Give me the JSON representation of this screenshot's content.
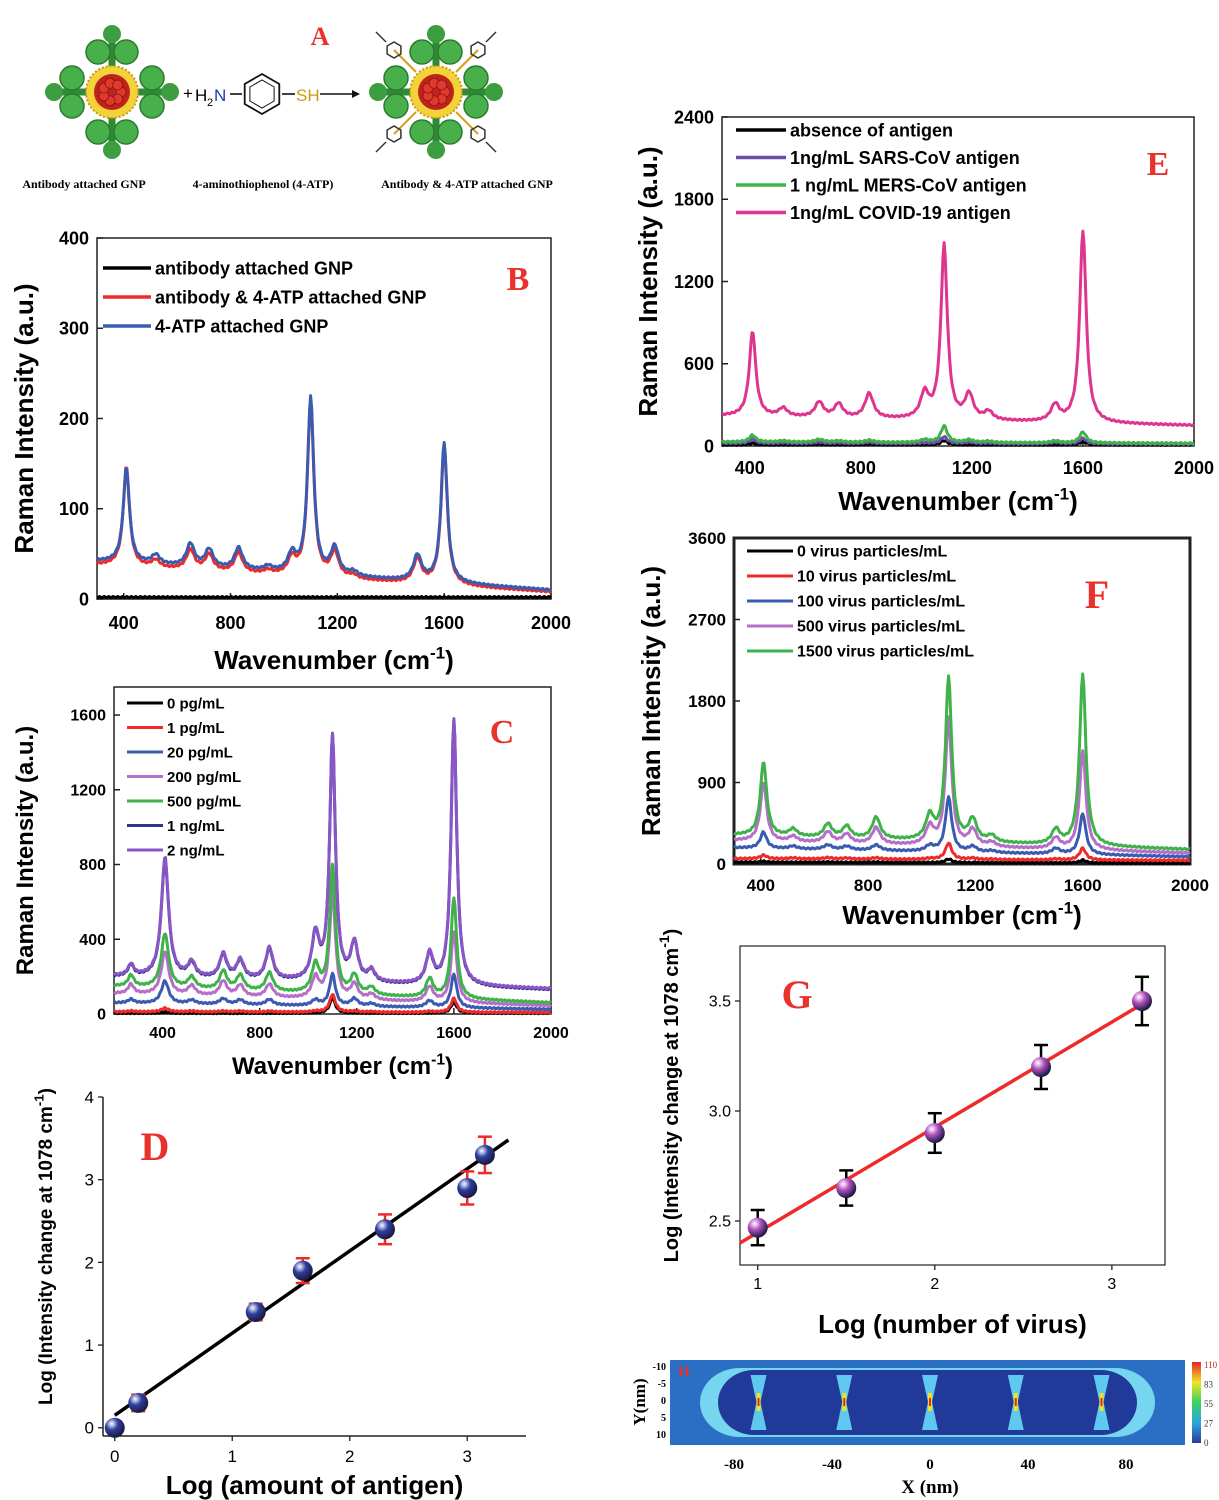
{
  "scheme": {
    "letter": "A",
    "reagent": "4-aminothiophenol (4-ATP)",
    "left_caption": "Antibody attached GNP",
    "right_caption": "Antibody & 4-ATP attached GNP",
    "plus": "+",
    "h2n": "H",
    "two": "2",
    "n": "N",
    "sh": "SH",
    "nh2": "NH2"
  },
  "colors": {
    "panel_letter": "#e8322b",
    "black": "#000000",
    "red": "#ee2b2b",
    "blue": "#3a5bb0",
    "magenta": "#e0358f",
    "green": "#3fb34a",
    "purple": "#6a4fa8",
    "lilac": "#b46fc9",
    "navy": "#2c3590"
  },
  "chart_data": [
    {
      "id": "B",
      "letter": "B",
      "type": "line",
      "xlabel": "Wavenumber (cm",
      "xlabel_sup": "-1",
      "xlabel_end": ")",
      "ylabel": "Raman Intensity (a.u.)",
      "xlim": [
        300,
        2000
      ],
      "ylim": [
        0,
        400
      ],
      "xticks": [
        400,
        800,
        1200,
        1600,
        2000
      ],
      "yticks": [
        0,
        100,
        200,
        300,
        400
      ],
      "legend_position": "top-left",
      "peaks_x": [
        410,
        520,
        650,
        720,
        830,
        940,
        1030,
        1100,
        1190,
        1260,
        1500,
        1600
      ],
      "series": [
        {
          "name": "antibody attached GNP",
          "color": "#000000",
          "baseline_start": 2,
          "baseline_end": 2,
          "peaks": [
            0,
            0,
            0,
            0,
            0,
            0,
            0,
            0,
            0,
            0,
            0,
            0
          ]
        },
        {
          "name": "antibody & 4-ATP attached GNP",
          "color": "#ee2b2b",
          "baseline_start": 38,
          "baseline_end": 8,
          "peaks": [
            110,
            8,
            22,
            18,
            22,
            4,
            18,
            195,
            28,
            4,
            27,
            155
          ]
        },
        {
          "name": "4-ATP attached GNP",
          "color": "#3a5bb0",
          "baseline_start": 42,
          "baseline_end": 10,
          "peaks": [
            105,
            10,
            25,
            20,
            24,
            5,
            20,
            195,
            30,
            5,
            28,
            155
          ]
        }
      ]
    },
    {
      "id": "C",
      "letter": "C",
      "type": "line",
      "xlabel": "Wavenumber (cm",
      "xlabel_sup": "-1",
      "xlabel_end": ")",
      "ylabel": "Raman Intensity (a.u.)",
      "xlim": [
        200,
        2000
      ],
      "ylim": [
        0,
        1750
      ],
      "xticks": [
        400,
        800,
        1200,
        1600,
        2000
      ],
      "yticks": [
        0,
        400,
        800,
        1200,
        1600
      ],
      "legend_position": "top-left",
      "peaks_x": [
        270,
        410,
        520,
        650,
        720,
        840,
        1030,
        1100,
        1190,
        1260,
        1500,
        1600
      ],
      "series": [
        {
          "name": "0 pg/mL",
          "color": "#000000",
          "baseline_start": 5,
          "baseline_end": 5,
          "peaks": [
            0,
            5,
            0,
            0,
            0,
            0,
            0,
            80,
            0,
            0,
            0,
            60
          ]
        },
        {
          "name": "1 pg/mL",
          "color": "#ee2b2b",
          "baseline_start": 12,
          "baseline_end": 8,
          "peaks": [
            5,
            20,
            5,
            5,
            5,
            5,
            5,
            95,
            5,
            3,
            5,
            75
          ]
        },
        {
          "name": "20 pg/mL",
          "color": "#3a5bb0",
          "baseline_start": 60,
          "baseline_end": 25,
          "peaks": [
            20,
            120,
            20,
            30,
            25,
            30,
            30,
            170,
            40,
            15,
            35,
            180
          ]
        },
        {
          "name": "200 pg/mL",
          "color": "#b46fc9",
          "baseline_start": 110,
          "baseline_end": 45,
          "peaks": [
            50,
            230,
            50,
            80,
            60,
            70,
            110,
            580,
            80,
            30,
            80,
            380
          ]
        },
        {
          "name": "500 pg/mL",
          "color": "#3fb34a",
          "baseline_start": 150,
          "baseline_end": 60,
          "peaks": [
            60,
            290,
            60,
            100,
            80,
            100,
            150,
            680,
            100,
            40,
            100,
            540
          ]
        },
        {
          "name": "1 ng/mL",
          "color": "#2c3590",
          "baseline_start": 200,
          "baseline_end": 130,
          "peaks": [
            60,
            630,
            80,
            130,
            100,
            170,
            240,
            1310,
            200,
            60,
            160,
            1420
          ]
        },
        {
          "name": "2 ng/mL",
          "color": "#8a55c6",
          "baseline_start": 205,
          "baseline_end": 135,
          "peaks": [
            60,
            640,
            80,
            130,
            100,
            170,
            240,
            1310,
            200,
            60,
            160,
            1420
          ]
        }
      ]
    },
    {
      "id": "E",
      "letter": "E",
      "type": "line",
      "xlabel": "Wavenumber (cm",
      "xlabel_sup": "-1",
      "xlabel_end": ")",
      "ylabel": "Raman Intensity (a.u.)",
      "xlim": [
        300,
        2000
      ],
      "ylim": [
        0,
        2400
      ],
      "xticks": [
        400,
        800,
        1200,
        1600,
        2000
      ],
      "yticks": [
        0,
        600,
        1200,
        1800,
        2400
      ],
      "legend_position": "top-left",
      "peaks_x": [
        410,
        520,
        650,
        720,
        830,
        1030,
        1100,
        1190,
        1260,
        1500,
        1600
      ],
      "series": [
        {
          "name": "absence of antigen",
          "color": "#000000",
          "baseline_start": 10,
          "baseline_end": 10,
          "peaks": [
            10,
            0,
            5,
            0,
            5,
            0,
            30,
            0,
            0,
            0,
            20
          ]
        },
        {
          "name": "1ng/mL  SARS-CoV antigen",
          "color": "#6a4fa8",
          "baseline_start": 20,
          "baseline_end": 15,
          "peaks": [
            30,
            5,
            10,
            5,
            10,
            5,
            50,
            10,
            5,
            10,
            40
          ]
        },
        {
          "name": "1 ng/mL  MERS-CoV antigen",
          "color": "#3fb34a",
          "baseline_start": 30,
          "baseline_end": 20,
          "peaks": [
            50,
            10,
            20,
            10,
            15,
            20,
            120,
            20,
            10,
            15,
            80
          ]
        },
        {
          "name": "1ng/mL  COVID-19 antigen",
          "color": "#e0358f",
          "baseline_start": 220,
          "baseline_end": 150,
          "peaks": [
            620,
            60,
            110,
            100,
            180,
            180,
            1270,
            180,
            60,
            120,
            1400
          ]
        }
      ]
    },
    {
      "id": "F",
      "letter": "F",
      "type": "line",
      "xlabel": "Wavenumber (cm",
      "xlabel_sup": "-1",
      "xlabel_end": ")",
      "ylabel": "Raman Intensity (a.u.)",
      "xlim": [
        300,
        2000
      ],
      "ylim": [
        0,
        3600
      ],
      "xticks": [
        400,
        800,
        1200,
        1600,
        2000
      ],
      "yticks": [
        0,
        900,
        1800,
        2700,
        3600
      ],
      "legend_position": "top-left",
      "peaks_x": [
        410,
        520,
        650,
        720,
        830,
        1030,
        1100,
        1190,
        1260,
        1500,
        1600
      ],
      "series": [
        {
          "name": "0 virus particles/mL",
          "color": "#000000",
          "baseline_start": 20,
          "baseline_end": 10,
          "peaks": [
            10,
            0,
            5,
            0,
            5,
            0,
            40,
            0,
            0,
            0,
            30
          ]
        },
        {
          "name": "10 virus particles/mL",
          "color": "#ee2b2b",
          "baseline_start": 60,
          "baseline_end": 40,
          "peaks": [
            40,
            10,
            15,
            10,
            15,
            10,
            180,
            15,
            5,
            10,
            130
          ]
        },
        {
          "name": "100 virus particles/mL",
          "color": "#3a5bb0",
          "baseline_start": 180,
          "baseline_end": 80,
          "peaks": [
            180,
            30,
            50,
            40,
            60,
            60,
            600,
            60,
            20,
            60,
            450
          ]
        },
        {
          "name": "500 virus particles/mL",
          "color": "#b46fc9",
          "baseline_start": 260,
          "baseline_end": 120,
          "peaks": [
            650,
            60,
            120,
            100,
            180,
            200,
            1400,
            180,
            50,
            120,
            1100
          ]
        },
        {
          "name": "1500 virus particles/mL",
          "color": "#3fb34a",
          "baseline_start": 320,
          "baseline_end": 160,
          "peaks": [
            820,
            80,
            150,
            130,
            240,
            260,
            1800,
            240,
            70,
            160,
            1900
          ]
        }
      ]
    },
    {
      "id": "D",
      "letter": "D",
      "type": "scatter",
      "xlabel": "Log (amount of antigen)",
      "ylabel": "Log (Intensity change at 1078 cm",
      "ylabel_sup": "-1",
      "ylabel_end": ")",
      "xlim": [
        -0.1,
        3.5
      ],
      "ylim": [
        -0.1,
        4
      ],
      "xticks": [
        0,
        1,
        2,
        3
      ],
      "yticks": [
        0,
        1,
        2,
        3,
        4
      ],
      "points": [
        {
          "x": 0,
          "y": 0,
          "err": 0
        },
        {
          "x": 0.2,
          "y": 0.3,
          "err": 0.1
        },
        {
          "x": 1.2,
          "y": 1.4,
          "err": 0.1
        },
        {
          "x": 1.6,
          "y": 1.9,
          "err": 0.15
        },
        {
          "x": 2.3,
          "y": 2.4,
          "err": 0.18
        },
        {
          "x": 3.0,
          "y": 2.9,
          "err": 0.2
        },
        {
          "x": 3.15,
          "y": 3.3,
          "err": 0.22
        }
      ],
      "fit": {
        "x0": 0,
        "y0": 0.15,
        "x1": 3.35,
        "y1": 3.48,
        "color": "#000000"
      },
      "error_color": "#ee2b2b",
      "marker_color": "#2f3f9e"
    },
    {
      "id": "G",
      "letter": "G",
      "type": "scatter",
      "xlabel": "Log (number of virus)",
      "ylabel": "Log (Intensity change at 1078 cm",
      "ylabel_sup": "-1",
      "ylabel_end": ")",
      "xlim": [
        0.9,
        3.3
      ],
      "ylim": [
        2.3,
        3.75
      ],
      "xticks": [
        1,
        2,
        3
      ],
      "yticks": [
        2.5,
        3.0,
        3.5
      ],
      "ytick_labels": [
        "2.5",
        "3.0",
        "3.5"
      ],
      "points": [
        {
          "x": 1,
          "y": 2.47,
          "err": 0.08
        },
        {
          "x": 1.5,
          "y": 2.65,
          "err": 0.08
        },
        {
          "x": 2.0,
          "y": 2.9,
          "err": 0.09
        },
        {
          "x": 2.6,
          "y": 3.2,
          "err": 0.1
        },
        {
          "x": 3.17,
          "y": 3.5,
          "err": 0.11
        }
      ],
      "fit": {
        "x0": 0.9,
        "y0": 2.4,
        "x1": 3.2,
        "y1": 3.5,
        "color": "#ee2b2b"
      },
      "error_color": "#000000",
      "marker_color": "#b24fbf"
    },
    {
      "id": "H",
      "letter": "H",
      "type": "heatmap",
      "xlabel": "X (nm)",
      "ylabel": "Y(nm)",
      "xticks": [
        -80,
        -40,
        0,
        40,
        80
      ],
      "yticks": [
        "-10",
        "-5",
        "0",
        "5",
        "10"
      ],
      "colorbar_ticks": [
        "110",
        "83",
        "55",
        "27",
        "0"
      ],
      "gap_x": [
        -70,
        -35,
        0,
        35,
        70
      ]
    }
  ]
}
